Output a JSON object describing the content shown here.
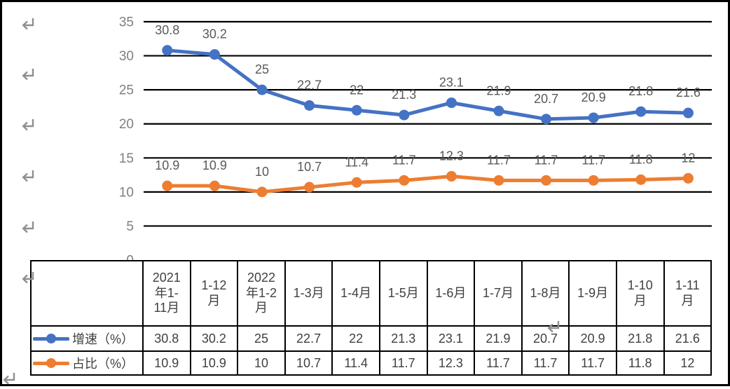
{
  "chart_data": {
    "type": "line",
    "title": "",
    "xlabel": "",
    "ylabel": "",
    "categories": [
      "2021年1-11月",
      "1-12月",
      "2022年1-2月",
      "1-3月",
      "1-4月",
      "1-5月",
      "1-6月",
      "1-7月",
      "1-8月",
      "1-9月",
      "1-10月",
      "1-11月"
    ],
    "series": [
      {
        "name": "增速（%）",
        "color": "#4472C4",
        "values": [
          30.8,
          30.2,
          25,
          22.7,
          22,
          21.3,
          23.1,
          21.9,
          20.7,
          20.9,
          21.8,
          21.6
        ]
      },
      {
        "name": "占比（%）",
        "color": "#ED7D31",
        "values": [
          10.9,
          10.9,
          10,
          10.7,
          11.4,
          11.7,
          12.3,
          11.7,
          11.7,
          11.7,
          11.8,
          12
        ]
      }
    ],
    "ylim": [
      0,
      35
    ],
    "yticks": [
      0,
      5,
      10,
      15,
      20,
      25,
      30,
      35
    ],
    "grid": "horizontal-only",
    "data_labels": true,
    "legend_position": "table-left-column"
  },
  "table": {
    "headers": [
      "2021\n年1-\n11月",
      "1-12\n月",
      "2022\n年1-2\n月",
      "1-3月",
      "1-4月",
      "1-5月",
      "1-6月",
      "1-7月",
      "1-8月",
      "1-9月",
      "1-10\n月",
      "1-11\n月"
    ],
    "rows": [
      {
        "legend": "增速（%）",
        "values": [
          "30.8",
          "30.2",
          "25",
          "22.7",
          "22",
          "21.3",
          "23.1",
          "21.9",
          "20.7",
          "20.9",
          "21.8",
          "21.6"
        ]
      },
      {
        "legend": "占比（%）",
        "values": [
          "10.9",
          "10.9",
          "10",
          "10.7",
          "11.4",
          "11.7",
          "12.3",
          "11.7",
          "11.7",
          "11.7",
          "11.8",
          "12"
        ]
      }
    ]
  },
  "colors": {
    "series_growth": "#4472C4",
    "series_share": "#ED7D31",
    "grid": "#000000",
    "page_border": "#000000",
    "axis_text": "#7f7f7f",
    "data_label": "#595959",
    "table_text": "#404040",
    "paragraph_mark": "#8f8f8f"
  },
  "paragraph_mark": {
    "glyph": "↵",
    "name": "return-mark"
  }
}
